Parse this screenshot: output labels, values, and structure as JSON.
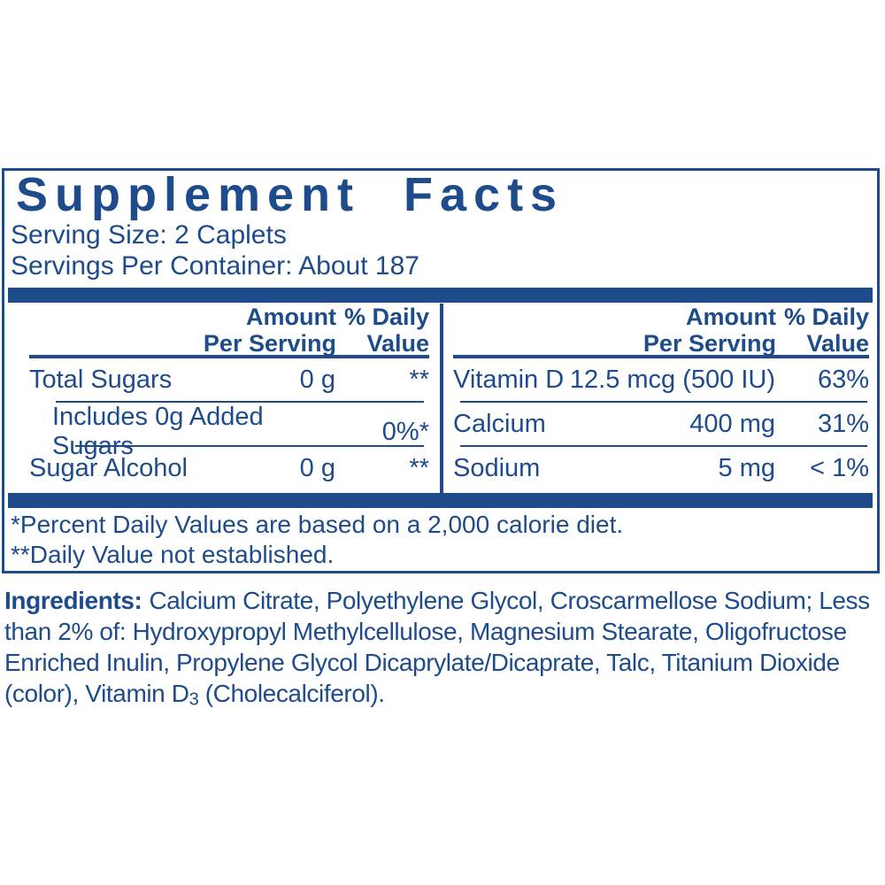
{
  "colors": {
    "primary": "#1d4b8c"
  },
  "title": "Supplement Facts",
  "serving": {
    "size": "Serving Size: 2 Caplets",
    "per_container": "Servings Per Container: About 187"
  },
  "table": {
    "header": {
      "amount_top": "Amount",
      "amount_bottom": "Per Serving",
      "daily_top": "% Daily",
      "daily_bottom": "Value"
    },
    "left_rows": [
      {
        "name": "Total Sugars",
        "amount": "0 g",
        "dv": "**"
      },
      {
        "name": "Includes 0g Added Sugars",
        "amount": "",
        "dv": "0%*"
      },
      {
        "name": "Sugar Alcohol",
        "amount": "0 g",
        "dv": "**"
      }
    ],
    "right_rows": [
      {
        "name": "Vitamin D",
        "amount": "12.5 mcg (500 IU)",
        "dv": "63%"
      },
      {
        "name": "Calcium",
        "amount": "400 mg",
        "dv": "31%"
      },
      {
        "name": "Sodium",
        "amount": "5 mg",
        "dv": "< 1%"
      }
    ]
  },
  "footnotes": {
    "daily_value": "*Percent Daily Values are based on a 2,000 calorie diet.",
    "not_established": "**Daily Value not established."
  },
  "ingredients": {
    "label": "Ingredients:",
    "body": "Calcium Citrate, Polyethylene Glycol, Croscarmellose Sodium; Less than 2% of: Hydroxypropyl Methylcellulose, Magnesium Stearate, Oligofructose Enriched Inulin, Propylene Glycol Dicaprylate/Dicaprate, Talc, Titanium Dioxide (color), Vitamin D",
    "vitamin_subscript": "3",
    "tail": " (Cholecalciferol)."
  }
}
